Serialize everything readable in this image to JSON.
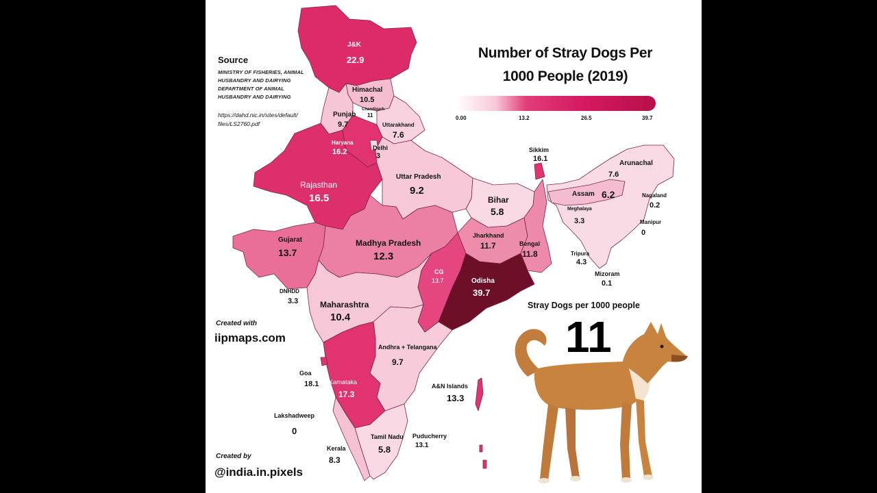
{
  "title": "Number of Stray Dogs Per 1000 People (2019)",
  "title_line1": "Number of Stray Dogs Per",
  "title_line2": "1000 People (2019)",
  "legend": {
    "ticks": [
      "0.00",
      "13.2",
      "26.5",
      "39.7"
    ],
    "min": 0.0,
    "max": 39.7,
    "low_color": "#ffffff",
    "high_color": "#b80f4b"
  },
  "source": {
    "heading": "Source",
    "lines": [
      "MINISTRY OF FISHERIES, ANIMAL",
      "HUSBANDRY AND DAIRYING",
      "DEPARTMENT OF ANIMAL",
      "HUSBANDRY AND DAIRYING"
    ],
    "url_line1": "https://dahd.nic.in/sites/default/",
    "url_line2": "files/LS2760.pdf"
  },
  "credits": {
    "created_with_label": "Created with",
    "created_with": "iipmaps.com",
    "created_by_label": "Created by",
    "created_by": "@india.in.pixels"
  },
  "national": {
    "label": "Stray Dogs per 1000 people",
    "value": "11"
  },
  "regions": [
    {
      "name": "J&K",
      "value": "22.9"
    },
    {
      "name": "Himachal",
      "value": "10.5"
    },
    {
      "name": "Chandigarh",
      "value": "11"
    },
    {
      "name": "Punjab",
      "value": "9.7"
    },
    {
      "name": "Uttarakhand",
      "value": "7.6"
    },
    {
      "name": "Haryana",
      "value": "16.2"
    },
    {
      "name": "Delhi",
      "value": "3"
    },
    {
      "name": "Rajasthan",
      "value": "16.5"
    },
    {
      "name": "Uttar Pradesh",
      "value": "9.2"
    },
    {
      "name": "Bihar",
      "value": "5.8"
    },
    {
      "name": "Sikkim",
      "value": "16.1"
    },
    {
      "name": "Arunachal",
      "value": "7.6"
    },
    {
      "name": "Assam",
      "value": "6.2"
    },
    {
      "name": "Nagaland",
      "value": "0.2"
    },
    {
      "name": "Meghalaya",
      "value": "3.3"
    },
    {
      "name": "Manipur",
      "value": "0"
    },
    {
      "name": "Tripura",
      "value": "4.3"
    },
    {
      "name": "Mizoram",
      "value": "0.1"
    },
    {
      "name": "Gujarat",
      "value": "13.7"
    },
    {
      "name": "Madhya Pradesh",
      "value": "12.3"
    },
    {
      "name": "Jharkhand",
      "value": "11.7"
    },
    {
      "name": "Bengal",
      "value": "11.8"
    },
    {
      "name": "CG",
      "value": "13.7"
    },
    {
      "name": "Odisha",
      "value": "39.7"
    },
    {
      "name": "DNHDD",
      "value": "3.3"
    },
    {
      "name": "Maharashtra",
      "value": "10.4"
    },
    {
      "name": "Andhra + Telangana",
      "value": "9.7"
    },
    {
      "name": "Goa",
      "value": "18.1"
    },
    {
      "name": "Karnataka",
      "value": "17.3"
    },
    {
      "name": "A&N Islands",
      "value": "13.3"
    },
    {
      "name": "Lakshadweep",
      "value": "0"
    },
    {
      "name": "Tamil Nadu",
      "value": "5.8"
    },
    {
      "name": "Puducherry",
      "value": "13.1"
    },
    {
      "name": "Kerala",
      "value": "8.3"
    }
  ]
}
